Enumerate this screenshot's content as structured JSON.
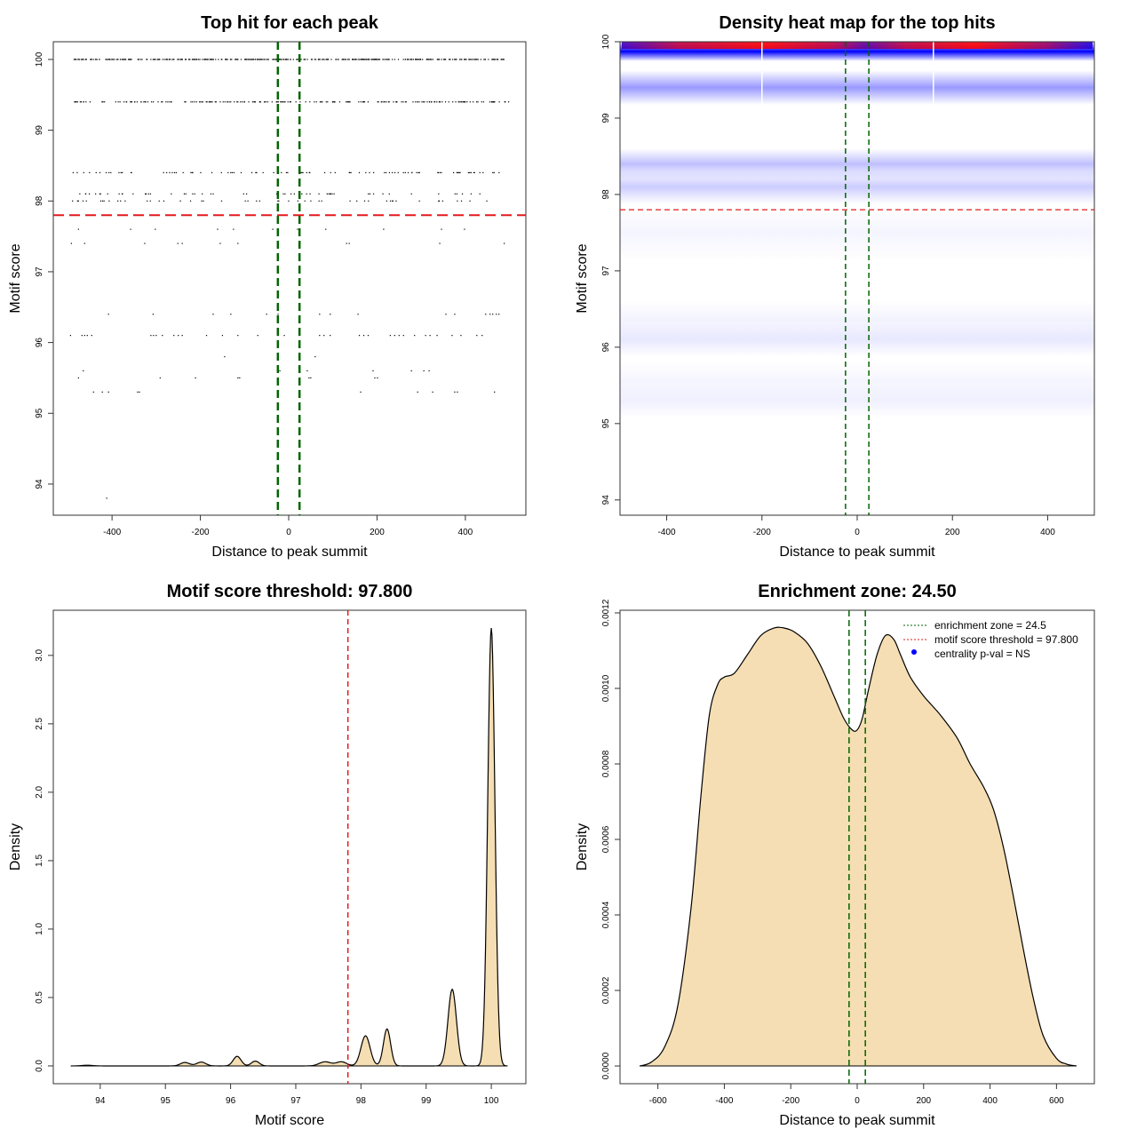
{
  "colors": {
    "fill": "#f5deb3",
    "green": "#006400",
    "red": "#e31a1c",
    "blue": "#0000ff",
    "heat_high": "#ff0000"
  },
  "chart_data": [
    {
      "type": "scatter",
      "title": "Top hit for each peak",
      "xlabel": "Distance to peak summit",
      "ylabel": "Motif score",
      "xlim": [
        -533,
        537
      ],
      "ylim": [
        93.56,
        100.25
      ],
      "xticks": [
        -400,
        -200,
        0,
        200,
        400
      ],
      "xtick_labels": [
        "-400",
        "-200",
        "0",
        "200",
        "400"
      ],
      "yticks": [
        94,
        95,
        96,
        97,
        98,
        99,
        100
      ],
      "ytick_labels": [
        "94",
        "95",
        "96",
        "97",
        "98",
        "99",
        "100"
      ],
      "vlines": [
        -24.5,
        24.5
      ],
      "hline": 97.8,
      "dense_rows": [
        {
          "score": 100,
          "n": 420,
          "from": -490,
          "to": 490
        },
        {
          "score": 99.4,
          "n": 200,
          "from": -490,
          "to": 500
        },
        {
          "score": 98.4,
          "n": 90,
          "from": -490,
          "to": 495
        },
        {
          "score": 98.1,
          "n": 55,
          "from": -485,
          "to": 495
        },
        {
          "score": 98.0,
          "n": 50,
          "from": -490,
          "to": 495
        }
      ],
      "sparse_rows": [
        {
          "score": 97.6,
          "x": [
            -476,
            -358,
            -302,
            -161,
            -125,
            -36,
            20,
            84,
            215,
            346,
            398
          ]
        },
        {
          "score": 97.4,
          "x": [
            -492,
            -462,
            -326,
            -251,
            -241,
            -155,
            -115,
            26,
            131,
            137,
            342,
            488
          ]
        },
        {
          "score": 96.4,
          "x": [
            -408,
            -307,
            -171,
            -131,
            -50,
            -24,
            70,
            94,
            157,
            356,
            376,
            446,
            456,
            462,
            470,
            476
          ]
        },
        {
          "score": 96.1,
          "x": [
            -494,
            -468,
            -462,
            -456,
            -446,
            -312,
            -306,
            -300,
            -286,
            -260,
            -250,
            -241,
            -186,
            -150,
            -115,
            -70,
            -24,
            -10,
            24,
            70,
            80,
            94,
            160,
            170,
            180,
            230,
            240,
            250,
            260,
            285,
            310,
            320,
            336,
            370,
            390,
            426,
            438
          ]
        },
        {
          "score": 95.8,
          "x": [
            -145,
            60
          ]
        },
        {
          "score": 95.6,
          "x": [
            -465,
            -20,
            42,
            191,
            278,
            306,
            318
          ]
        },
        {
          "score": 95.5,
          "x": [
            -476,
            -291,
            -211,
            -115,
            -111,
            46,
            50,
            195,
            201
          ]
        },
        {
          "score": 95.3,
          "x": [
            -442,
            -422,
            -408,
            -342,
            -338,
            163,
            292,
            326,
            376,
            382,
            466
          ]
        },
        {
          "score": 93.8,
          "x": [
            -412
          ]
        }
      ]
    },
    {
      "type": "heatmap",
      "title": "Density heat map for the top hits",
      "xlabel": "Distance to peak summit",
      "ylabel": "Motif score",
      "xlim": [
        -498,
        498
      ],
      "ylim": [
        93.8,
        100
      ],
      "xticks": [
        -400,
        -200,
        0,
        200,
        400
      ],
      "xtick_labels": [
        "-400",
        "-200",
        "0",
        "200",
        "400"
      ],
      "yticks": [
        94,
        95,
        96,
        97,
        98,
        99,
        100
      ],
      "ytick_labels": [
        "94",
        "95",
        "96",
        "97",
        "98",
        "99",
        "100"
      ],
      "vlines": [
        -24.5,
        24.5
      ],
      "hline": 97.8,
      "bands": [
        {
          "score": 99.92,
          "intensity": 1.0,
          "spread": 0.07
        },
        {
          "score": 99.4,
          "intensity": 0.4,
          "spread": 0.09
        },
        {
          "score": 98.4,
          "intensity": 0.25,
          "spread": 0.08
        },
        {
          "score": 98.1,
          "intensity": 0.2,
          "spread": 0.09
        },
        {
          "score": 97.5,
          "intensity": 0.04,
          "spread": 0.15
        },
        {
          "score": 96.35,
          "intensity": 0.05,
          "spread": 0.1
        },
        {
          "score": 96.1,
          "intensity": 0.09,
          "spread": 0.09
        },
        {
          "score": 95.55,
          "intensity": 0.04,
          "spread": 0.1
        },
        {
          "score": 95.3,
          "intensity": 0.06,
          "spread": 0.09
        }
      ],
      "top_peak_score": 100
    },
    {
      "type": "area",
      "title": "Motif score threshold: 97.800",
      "xlabel": "Motif score",
      "ylabel": "Density",
      "xlim": [
        93.28,
        100.53
      ],
      "ylim": [
        -0.13,
        3.33
      ],
      "xticks": [
        94,
        95,
        96,
        97,
        98,
        99,
        100
      ],
      "xtick_labels": [
        "94",
        "95",
        "96",
        "97",
        "98",
        "99",
        "100"
      ],
      "yticks": [
        0,
        0.5,
        1,
        1.5,
        2,
        2.5,
        3
      ],
      "ytick_labels": [
        "0.0",
        "0.5",
        "1.0",
        "1.5",
        "2.0",
        "2.5",
        "3.0"
      ],
      "vline": 97.8,
      "range": [
        93.55,
        100.25
      ],
      "components": [
        {
          "center": 93.8,
          "height": 0.005,
          "sd": 0.08
        },
        {
          "center": 95.3,
          "height": 0.025,
          "sd": 0.07
        },
        {
          "center": 95.55,
          "height": 0.028,
          "sd": 0.07
        },
        {
          "center": 96.1,
          "height": 0.07,
          "sd": 0.06
        },
        {
          "center": 96.38,
          "height": 0.035,
          "sd": 0.06
        },
        {
          "center": 97.45,
          "height": 0.03,
          "sd": 0.09
        },
        {
          "center": 97.7,
          "height": 0.03,
          "sd": 0.08
        },
        {
          "center": 98.07,
          "height": 0.22,
          "sd": 0.07
        },
        {
          "center": 98.4,
          "height": 0.27,
          "sd": 0.055
        },
        {
          "center": 99.4,
          "height": 0.56,
          "sd": 0.065
        },
        {
          "center": 100.0,
          "height": 3.2,
          "sd": 0.055
        }
      ]
    },
    {
      "type": "area",
      "title": "Enrichment zone: 24.50",
      "xlabel": "Distance to peak summit",
      "ylabel": "Density",
      "xlim": [
        -714,
        714
      ],
      "ylim": [
        -4.7e-05,
        0.001207
      ],
      "xticks": [
        -600,
        -400,
        -200,
        0,
        200,
        400,
        600
      ],
      "xtick_labels": [
        "-600",
        "-400",
        "-200",
        "0",
        "200",
        "400",
        "600"
      ],
      "yticks": [
        0,
        0.0002,
        0.0004,
        0.0006,
        0.0008,
        0.001,
        0.0012
      ],
      "ytick_labels": [
        "0.0000",
        "0.0002",
        "0.0004",
        "0.0006",
        "0.0008",
        "0.0010",
        "0.0012"
      ],
      "vlines": [
        -24.5,
        24.5
      ],
      "x": [
        -655,
        -620,
        -580,
        -540,
        -500,
        -470,
        -445,
        -420,
        -400,
        -370,
        -330,
        -290,
        -250,
        -220,
        -190,
        -150,
        -110,
        -70,
        -40,
        -15,
        0,
        15,
        35,
        60,
        85,
        110,
        130,
        160,
        200,
        250,
        300,
        340,
        380,
        410,
        440,
        470,
        500,
        530,
        560,
        600,
        630,
        660
      ],
      "y": [
        0,
        1e-05,
        5e-05,
        0.00016,
        0.00042,
        0.00072,
        0.00093,
        0.00101,
        0.00103,
        0.00104,
        0.00109,
        0.00114,
        0.00116,
        0.00116,
        0.00115,
        0.00112,
        0.00106,
        0.00098,
        0.00092,
        0.00089,
        0.00089,
        0.00092,
        0.001,
        0.00109,
        0.00114,
        0.00113,
        0.00109,
        0.00103,
        0.00098,
        0.00093,
        0.00087,
        0.0008,
        0.00074,
        0.00068,
        0.00058,
        0.00045,
        0.00031,
        0.00018,
        8e-05,
        2e-05,
        5e-06,
        0
      ],
      "legend": {
        "position": "top-right",
        "items": [
          "enrichment zone = 24.5",
          "motif score threshold = 97.800",
          "centrality p-val = NS"
        ]
      }
    }
  ]
}
